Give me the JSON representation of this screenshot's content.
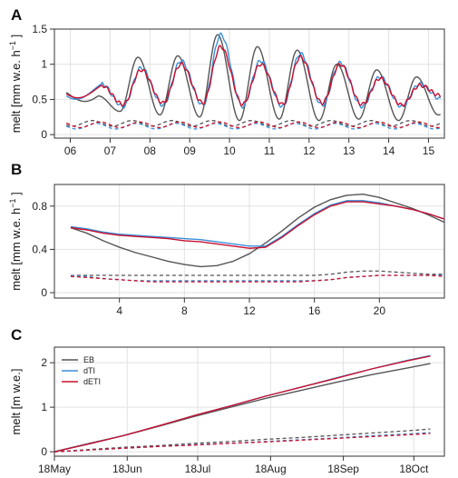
{
  "chart_data": [
    {
      "panel": "A",
      "type": "line",
      "xlabel": "",
      "ylabel": "melt [mm w.e. h",
      "ylabel_sup": "−1",
      "ylabel_end": "]",
      "xlim": [
        5.6,
        15.4
      ],
      "ylim": [
        -0.05,
        1.5
      ],
      "xticks": [
        6,
        7,
        8,
        9,
        10,
        11,
        12,
        13,
        14,
        15
      ],
      "xtick_labels": [
        "06",
        "07",
        "08",
        "09",
        "10",
        "11",
        "12",
        "13",
        "14",
        "15"
      ],
      "yticks": [
        0,
        0.5,
        1,
        1.5
      ],
      "ytick_labels": [
        "0",
        "0.5",
        "1",
        "1.5"
      ],
      "grid": true,
      "day_peaks": {
        "EB": [
          0.55,
          1.1,
          1.12,
          1.42,
          1.25,
          1.2,
          1.0,
          0.92,
          0.82
        ],
        "dTI": [
          0.72,
          0.95,
          1.05,
          1.42,
          1.05,
          1.15,
          1.02,
          0.82,
          0.72
        ],
        "dETI": [
          0.7,
          0.92,
          1.0,
          1.25,
          1.0,
          1.1,
          1.0,
          0.8,
          0.7
        ]
      },
      "day_minima": {
        "EB": [
          0.33,
          0.28,
          0.25,
          0.2,
          0.22,
          0.2,
          0.22,
          0.2,
          0.28
        ],
        "dTI": [
          0.4,
          0.42,
          0.42,
          0.4,
          0.4,
          0.42,
          0.4,
          0.4,
          0.5
        ],
        "dETI": [
          0.43,
          0.45,
          0.45,
          0.43,
          0.43,
          0.45,
          0.43,
          0.42,
          0.55
        ]
      },
      "start_values": {
        "EB": 0.6,
        "dTI": 0.55,
        "dETI": 0.58
      },
      "dashed_level": {
        "EB": 0.16,
        "dTI": 0.12,
        "dETI": 0.14
      }
    },
    {
      "panel": "B",
      "type": "line",
      "xlabel": "",
      "ylabel": "melt [mm w.e. h",
      "ylabel_sup": "−1",
      "ylabel_end": "]",
      "xlim": [
        0,
        24
      ],
      "ylim": [
        -0.05,
        1.0
      ],
      "xticks": [
        4,
        8,
        12,
        16,
        20
      ],
      "yticks": [
        0,
        0.4,
        0.8
      ],
      "ytick_labels": [
        "0",
        "0.4",
        "0.8"
      ],
      "grid": true,
      "x": [
        1,
        2,
        3,
        4,
        5,
        6,
        7,
        8,
        9,
        10,
        11,
        12,
        13,
        14,
        15,
        16,
        17,
        18,
        19,
        20,
        21,
        22,
        23,
        24
      ],
      "series": [
        {
          "name": "EB",
          "style": "solid",
          "values": [
            0.6,
            0.55,
            0.48,
            0.42,
            0.37,
            0.33,
            0.29,
            0.26,
            0.24,
            0.25,
            0.29,
            0.36,
            0.46,
            0.57,
            0.69,
            0.79,
            0.86,
            0.9,
            0.91,
            0.88,
            0.83,
            0.78,
            0.72,
            0.65
          ]
        },
        {
          "name": "dTI",
          "style": "solid",
          "values": [
            0.61,
            0.59,
            0.56,
            0.54,
            0.53,
            0.52,
            0.51,
            0.5,
            0.49,
            0.47,
            0.45,
            0.43,
            0.43,
            0.52,
            0.63,
            0.73,
            0.81,
            0.85,
            0.85,
            0.83,
            0.8,
            0.77,
            0.73,
            0.68
          ]
        },
        {
          "name": "dETI",
          "style": "solid",
          "values": [
            0.6,
            0.58,
            0.55,
            0.53,
            0.52,
            0.51,
            0.5,
            0.48,
            0.47,
            0.45,
            0.43,
            0.41,
            0.42,
            0.51,
            0.62,
            0.72,
            0.8,
            0.84,
            0.84,
            0.82,
            0.8,
            0.77,
            0.73,
            0.68
          ]
        },
        {
          "name": "EB",
          "style": "dashed",
          "values": [
            0.16,
            0.16,
            0.16,
            0.16,
            0.16,
            0.16,
            0.16,
            0.16,
            0.16,
            0.16,
            0.16,
            0.16,
            0.16,
            0.16,
            0.16,
            0.16,
            0.17,
            0.19,
            0.2,
            0.2,
            0.19,
            0.18,
            0.17,
            0.17
          ]
        },
        {
          "name": "dTI",
          "style": "dashed",
          "values": [
            0.16,
            0.15,
            0.13,
            0.12,
            0.11,
            0.11,
            0.11,
            0.11,
            0.11,
            0.11,
            0.11,
            0.11,
            0.11,
            0.11,
            0.11,
            0.11,
            0.12,
            0.14,
            0.15,
            0.16,
            0.16,
            0.16,
            0.16,
            0.16
          ]
        },
        {
          "name": "dETI",
          "style": "dashed",
          "values": [
            0.15,
            0.14,
            0.13,
            0.12,
            0.11,
            0.1,
            0.1,
            0.1,
            0.1,
            0.1,
            0.1,
            0.1,
            0.1,
            0.1,
            0.1,
            0.11,
            0.12,
            0.14,
            0.15,
            0.16,
            0.16,
            0.16,
            0.16,
            0.15
          ]
        }
      ]
    },
    {
      "panel": "C",
      "type": "line",
      "xlabel": "",
      "ylabel": "melt [m w.e.]",
      "xlim": [
        0,
        166
      ],
      "ylim": [
        -0.1,
        2.35
      ],
      "xticks": [
        0,
        31,
        61,
        92,
        123,
        153
      ],
      "xtick_labels": [
        "18May",
        "18Jun",
        "18Jul",
        "18Aug",
        "18Sep",
        "18Oct"
      ],
      "yticks": [
        0,
        1,
        2
      ],
      "ytick_labels": [
        "0",
        "1",
        "2"
      ],
      "grid": true,
      "legend": {
        "placement": "top-left",
        "entries": [
          "EB",
          "dTI",
          "dETI"
        ]
      },
      "x": [
        0,
        15,
        30,
        45,
        60,
        75,
        90,
        105,
        120,
        135,
        150,
        160
      ],
      "series": [
        {
          "name": "EB",
          "style": "solid",
          "values": [
            0,
            0.19,
            0.37,
            0.58,
            0.8,
            1.0,
            1.2,
            1.38,
            1.56,
            1.73,
            1.88,
            1.98
          ]
        },
        {
          "name": "dTI",
          "style": "solid",
          "values": [
            0,
            0.18,
            0.37,
            0.59,
            0.82,
            1.03,
            1.25,
            1.45,
            1.66,
            1.86,
            2.05,
            2.16
          ]
        },
        {
          "name": "dETI",
          "style": "solid",
          "values": [
            0,
            0.18,
            0.37,
            0.59,
            0.82,
            1.03,
            1.25,
            1.45,
            1.65,
            1.86,
            2.04,
            2.15
          ]
        },
        {
          "name": "EB",
          "style": "dashed",
          "values": [
            0,
            0.05,
            0.1,
            0.14,
            0.19,
            0.23,
            0.28,
            0.32,
            0.37,
            0.42,
            0.47,
            0.51
          ]
        },
        {
          "name": "dTI",
          "style": "dashed",
          "values": [
            0,
            0.04,
            0.08,
            0.12,
            0.16,
            0.19,
            0.23,
            0.27,
            0.31,
            0.36,
            0.4,
            0.43
          ]
        },
        {
          "name": "dETI",
          "style": "dashed",
          "values": [
            0,
            0.04,
            0.08,
            0.12,
            0.15,
            0.19,
            0.22,
            0.26,
            0.3,
            0.34,
            0.38,
            0.41
          ]
        }
      ]
    }
  ],
  "colors": {
    "EB": "#555555",
    "dTI": "#3a8fd9",
    "dETI": "#c8102e",
    "grid": "#e2e2e2"
  }
}
